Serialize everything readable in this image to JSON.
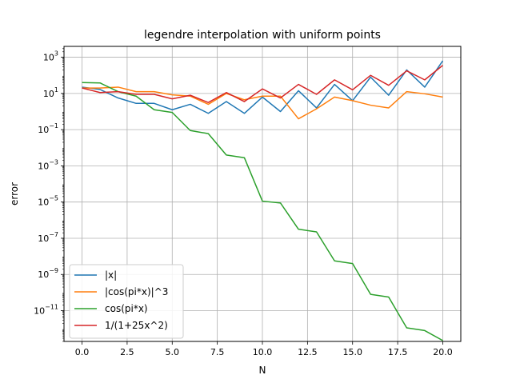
{
  "chart_data": {
    "type": "line",
    "title": "legendre interpolation with uniform points",
    "xlabel": "N",
    "ylabel": "error",
    "xscale": "linear",
    "yscale": "log",
    "xlim": [
      -1.0,
      21.0
    ],
    "ylim_log10": [
      -12.7,
      3.6
    ],
    "grid": true,
    "legend_loc": "lower-left",
    "x": [
      0,
      1,
      2,
      3,
      4,
      5,
      6,
      7,
      8,
      9,
      10,
      11,
      12,
      13,
      14,
      15,
      16,
      17,
      18,
      19,
      20
    ],
    "x_ticks": [
      {
        "value": 0.0,
        "label": "0.0"
      },
      {
        "value": 2.5,
        "label": "2.5"
      },
      {
        "value": 5.0,
        "label": "5.0"
      },
      {
        "value": 7.5,
        "label": "7.5"
      },
      {
        "value": 10.0,
        "label": "10.0"
      },
      {
        "value": 12.5,
        "label": "12.5"
      },
      {
        "value": 15.0,
        "label": "15.0"
      },
      {
        "value": 17.5,
        "label": "17.5"
      },
      {
        "value": 20.0,
        "label": "20.0"
      }
    ],
    "y_ticks": [
      {
        "exp": 3,
        "base": "10",
        "sup": "3"
      },
      {
        "exp": 1,
        "base": "10",
        "sup": "1"
      },
      {
        "exp": -1,
        "base": "10",
        "sup": "−1"
      },
      {
        "exp": -3,
        "base": "10",
        "sup": "−3"
      },
      {
        "exp": -5,
        "base": "10",
        "sup": "−5"
      },
      {
        "exp": -7,
        "base": "10",
        "sup": "−7"
      },
      {
        "exp": -9,
        "base": "10",
        "sup": "−9"
      },
      {
        "exp": -11,
        "base": "10",
        "sup": "−11"
      }
    ],
    "series": [
      {
        "name": "|x|",
        "color": "#1f77b4",
        "log10_values": [
          1.35,
          1.22,
          0.75,
          0.45,
          0.45,
          0.1,
          0.4,
          -0.1,
          0.55,
          -0.1,
          0.8,
          0.0,
          1.15,
          0.2,
          1.5,
          0.6,
          1.9,
          0.9,
          2.3,
          1.35,
          2.8
        ]
      },
      {
        "name": "|cos(pi*x)|^3",
        "color": "#ff7f0e",
        "log10_values": [
          1.3,
          1.3,
          1.35,
          1.1,
          1.1,
          0.92,
          0.85,
          0.4,
          1.0,
          0.65,
          0.85,
          0.85,
          -0.4,
          0.15,
          0.8,
          0.6,
          0.35,
          0.2,
          1.1,
          0.98,
          0.8
        ]
      },
      {
        "name": "cos(pi*x)",
        "color": "#2ca02c",
        "log10_values": [
          1.6,
          1.58,
          1.1,
          0.85,
          0.1,
          -0.05,
          -1.05,
          -1.22,
          -2.4,
          -2.55,
          -4.95,
          -5.05,
          -6.5,
          -6.65,
          -8.25,
          -8.4,
          -10.1,
          -10.25,
          -11.95,
          -12.1,
          -12.65
        ]
      },
      {
        "name": "1/(1+25x^2)",
        "color": "#d62728",
        "log10_values": [
          1.3,
          1.05,
          1.1,
          0.95,
          0.95,
          0.7,
          0.9,
          0.5,
          1.05,
          0.55,
          1.25,
          0.75,
          1.5,
          0.95,
          1.75,
          1.2,
          2.0,
          1.45,
          2.25,
          1.75,
          2.55
        ]
      }
    ]
  }
}
